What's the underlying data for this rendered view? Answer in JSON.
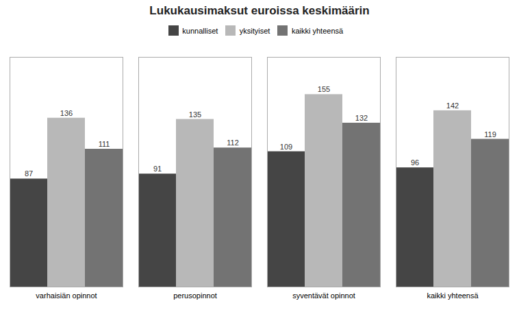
{
  "chart_data": {
    "type": "bar",
    "title": "Lukukausimaksut euroissa keskimäärin",
    "categories": [
      "varhaisiän opinnot",
      "perusopinnot",
      "syventävät opinnot",
      "kaikki yhteensä"
    ],
    "series": [
      {
        "name": "kunnalliset",
        "color": "#454545",
        "values": [
          87,
          91,
          109,
          96
        ]
      },
      {
        "name": "yksityiset",
        "color": "#b8b8b8",
        "values": [
          136,
          135,
          155,
          142
        ]
      },
      {
        "name": "kaikki yhteensä",
        "color": "#737373",
        "values": [
          111,
          112,
          132,
          119
        ]
      }
    ],
    "ylim": [
      0,
      185
    ],
    "grid": false,
    "legend": "top",
    "data_labels": true,
    "tick_labels": "x"
  }
}
